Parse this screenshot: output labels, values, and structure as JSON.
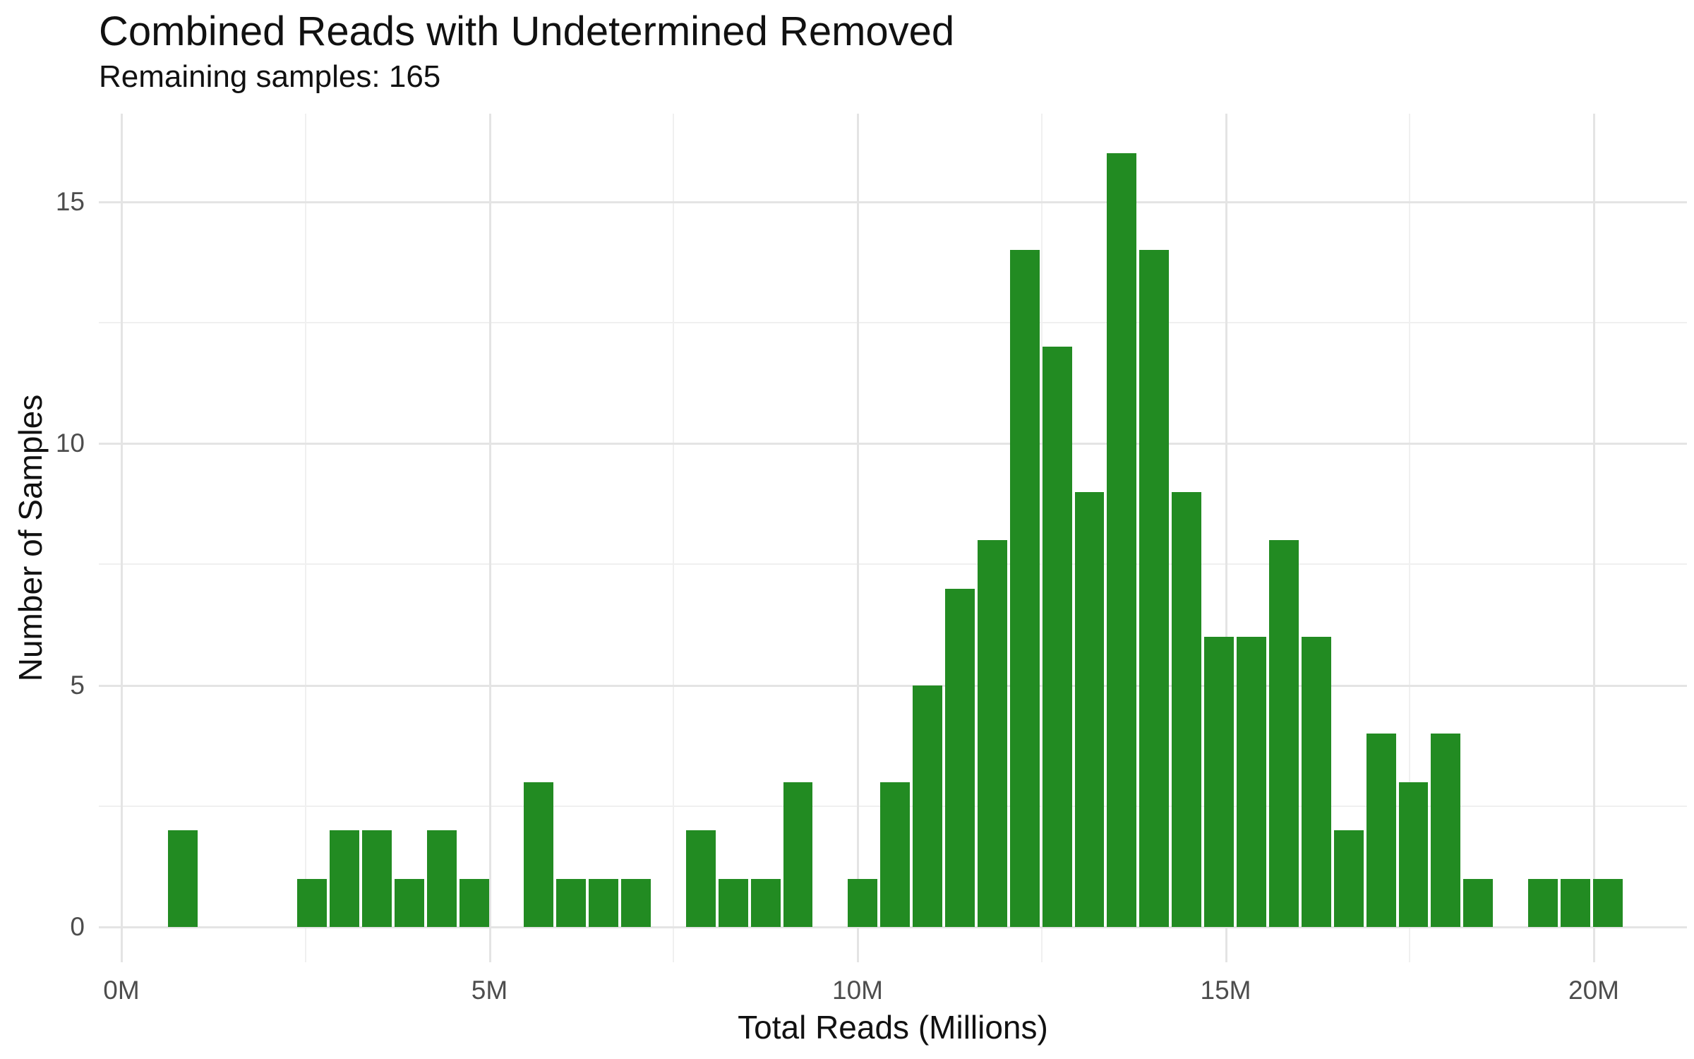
{
  "chart_data": {
    "type": "bar",
    "subtype": "histogram",
    "title": "Combined Reads with Undetermined Removed",
    "subtitle": "Remaining samples: 165",
    "xlabel": "Total Reads (Millions)",
    "ylabel": "Number of Samples",
    "total_samples": 165,
    "bar_color": "#228B22",
    "bar_gap_color": "#ffffff",
    "bin_width_millions": 0.44,
    "x_axis": {
      "range": [
        -0.35,
        21.3
      ],
      "ticks": [
        {
          "value": 0,
          "label": "0M"
        },
        {
          "value": 5,
          "label": "5M"
        },
        {
          "value": 10,
          "label": "10M"
        },
        {
          "value": 15,
          "label": "15M"
        },
        {
          "value": 20,
          "label": "20M"
        }
      ],
      "minor_ticks": [
        2.5,
        7.5,
        12.5,
        17.5
      ]
    },
    "y_axis": {
      "range": [
        0,
        16.8
      ],
      "ticks": [
        {
          "value": 0,
          "label": "0"
        },
        {
          "value": 5,
          "label": "5"
        },
        {
          "value": 10,
          "label": "10"
        },
        {
          "value": 15,
          "label": "15"
        }
      ],
      "minor_ticks": [
        2.5,
        7.5,
        12.5
      ]
    },
    "bins": [
      {
        "center": 0.83,
        "count": 2
      },
      {
        "center": 2.59,
        "count": 1
      },
      {
        "center": 3.03,
        "count": 2
      },
      {
        "center": 3.47,
        "count": 2
      },
      {
        "center": 3.91,
        "count": 1
      },
      {
        "center": 4.35,
        "count": 2
      },
      {
        "center": 4.79,
        "count": 1
      },
      {
        "center": 5.67,
        "count": 3
      },
      {
        "center": 6.11,
        "count": 1
      },
      {
        "center": 6.55,
        "count": 1
      },
      {
        "center": 6.99,
        "count": 1
      },
      {
        "center": 7.87,
        "count": 2
      },
      {
        "center": 8.31,
        "count": 1
      },
      {
        "center": 8.75,
        "count": 1
      },
      {
        "center": 9.19,
        "count": 3
      },
      {
        "center": 10.07,
        "count": 1
      },
      {
        "center": 10.51,
        "count": 3
      },
      {
        "center": 10.95,
        "count": 5
      },
      {
        "center": 11.39,
        "count": 7
      },
      {
        "center": 11.83,
        "count": 8
      },
      {
        "center": 12.27,
        "count": 14
      },
      {
        "center": 12.71,
        "count": 12
      },
      {
        "center": 13.15,
        "count": 9
      },
      {
        "center": 13.59,
        "count": 16
      },
      {
        "center": 14.03,
        "count": 14
      },
      {
        "center": 14.47,
        "count": 9
      },
      {
        "center": 14.91,
        "count": 6
      },
      {
        "center": 15.35,
        "count": 6
      },
      {
        "center": 15.79,
        "count": 8
      },
      {
        "center": 16.23,
        "count": 6
      },
      {
        "center": 16.67,
        "count": 2
      },
      {
        "center": 17.11,
        "count": 4
      },
      {
        "center": 17.55,
        "count": 3
      },
      {
        "center": 17.99,
        "count": 4
      },
      {
        "center": 18.43,
        "count": 1
      },
      {
        "center": 19.31,
        "count": 1
      },
      {
        "center": 19.75,
        "count": 1
      },
      {
        "center": 20.19,
        "count": 1
      }
    ]
  },
  "colors": {
    "background": "#ffffff",
    "grid_major": "#e4e4e4",
    "grid_minor": "#f0f0f0",
    "tick_text": "#4d4d4d",
    "text": "#111111"
  }
}
